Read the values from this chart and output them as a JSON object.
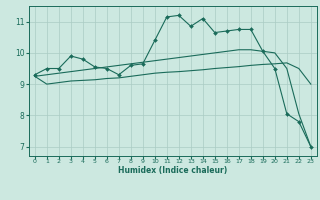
{
  "xlabel": "Humidex (Indice chaleur)",
  "bg_color": "#cce8e0",
  "grid_color": "#aaccc4",
  "line_color": "#1a6b5a",
  "xlim": [
    -0.5,
    23.5
  ],
  "ylim": [
    6.7,
    11.5
  ],
  "xticks": [
    0,
    1,
    2,
    3,
    4,
    5,
    6,
    7,
    8,
    9,
    10,
    11,
    12,
    13,
    14,
    15,
    16,
    17,
    18,
    19,
    20,
    21,
    22,
    23
  ],
  "yticks": [
    7,
    8,
    9,
    10,
    11
  ],
  "line1_x": [
    0,
    1,
    2,
    3,
    4,
    5,
    6,
    7,
    8,
    9,
    10,
    11,
    12,
    13,
    14,
    15,
    16,
    17,
    18,
    19,
    20,
    21,
    22,
    23
  ],
  "line1_y": [
    9.3,
    9.5,
    9.5,
    9.9,
    9.8,
    9.55,
    9.5,
    9.3,
    9.6,
    9.65,
    10.4,
    11.15,
    11.2,
    10.85,
    11.1,
    10.65,
    10.7,
    10.75,
    10.75,
    10.05,
    9.5,
    8.05,
    7.8,
    7.0
  ],
  "line1_marker_x": [
    0,
    1,
    2,
    3,
    4,
    5,
    6,
    7,
    8,
    9,
    10,
    11,
    12,
    13,
    14,
    15,
    16,
    17,
    18,
    19,
    20,
    21,
    22,
    23
  ],
  "line1_marker_y": [
    9.3,
    9.5,
    9.5,
    9.9,
    9.8,
    9.55,
    9.5,
    9.3,
    9.6,
    9.65,
    10.4,
    11.15,
    11.2,
    10.85,
    11.1,
    10.65,
    10.7,
    10.75,
    10.75,
    10.05,
    9.5,
    8.05,
    7.8,
    7.0
  ],
  "line2_x": [
    0,
    1,
    2,
    3,
    4,
    5,
    6,
    7,
    8,
    9,
    10,
    11,
    12,
    13,
    14,
    15,
    16,
    17,
    18,
    19,
    20,
    21,
    22,
    23
  ],
  "line2_y": [
    9.25,
    9.3,
    9.35,
    9.4,
    9.45,
    9.5,
    9.55,
    9.6,
    9.65,
    9.7,
    9.75,
    9.8,
    9.85,
    9.9,
    9.95,
    10.0,
    10.05,
    10.1,
    10.1,
    10.05,
    10.0,
    9.5,
    8.05,
    7.0
  ],
  "line3_x": [
    0,
    1,
    2,
    3,
    4,
    5,
    6,
    7,
    8,
    9,
    10,
    11,
    12,
    13,
    14,
    15,
    16,
    17,
    18,
    19,
    20,
    21,
    22,
    23
  ],
  "line3_y": [
    9.25,
    9.0,
    9.05,
    9.1,
    9.12,
    9.14,
    9.18,
    9.2,
    9.25,
    9.3,
    9.35,
    9.38,
    9.4,
    9.43,
    9.46,
    9.5,
    9.53,
    9.56,
    9.6,
    9.63,
    9.65,
    9.68,
    9.5,
    9.0
  ]
}
